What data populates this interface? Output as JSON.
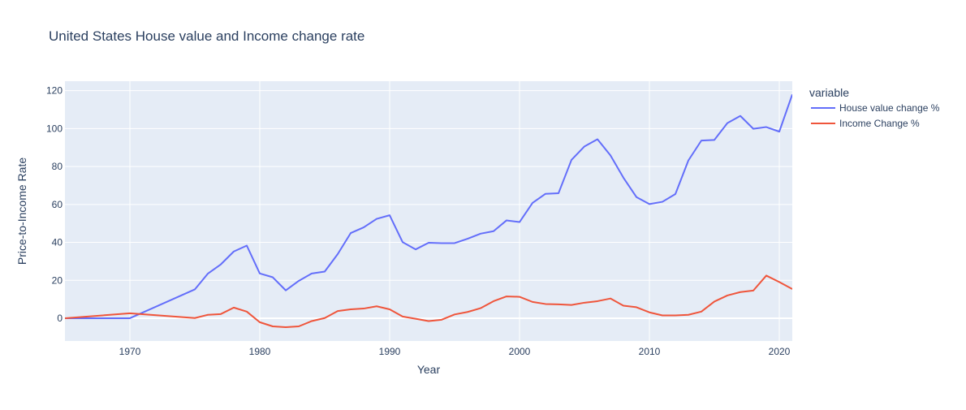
{
  "chart_data": {
    "type": "line",
    "title": "United States House value and Income change rate",
    "xlabel": "Year",
    "ylabel": "Price-to-Income Rate",
    "xlim": [
      1965,
      2021
    ],
    "ylim": [
      -12,
      125
    ],
    "x_ticks": [
      1970,
      1980,
      1990,
      2000,
      2010,
      2020
    ],
    "y_ticks": [
      0,
      20,
      40,
      60,
      80,
      100,
      120
    ],
    "grid": true,
    "legend": {
      "title": "variable",
      "position": "right"
    },
    "series": [
      {
        "name": "House value change %",
        "color": "#636efa",
        "x": [
          1965,
          1970,
          1975,
          1976,
          1977,
          1978,
          1979,
          1980,
          1981,
          1982,
          1983,
          1984,
          1985,
          1986,
          1987,
          1988,
          1989,
          1990,
          1991,
          1992,
          1993,
          1994,
          1995,
          1996,
          1997,
          1998,
          1999,
          2000,
          2001,
          2002,
          2003,
          2004,
          2005,
          2006,
          2007,
          2008,
          2009,
          2010,
          2011,
          2012,
          2013,
          2014,
          2015,
          2016,
          2017,
          2018,
          2019,
          2020,
          2021
        ],
        "y": [
          0,
          0,
          15.2,
          23.5,
          28.4,
          35.2,
          38.3,
          23.6,
          21.6,
          14.7,
          19.7,
          23.6,
          24.6,
          33.8,
          44.9,
          47.9,
          52.4,
          54.3,
          40.1,
          36.3,
          39.8,
          39.6,
          39.6,
          41.9,
          44.6,
          45.9,
          51.6,
          50.7,
          60.8,
          65.6,
          65.9,
          83.5,
          90.6,
          94.4,
          85.9,
          74.1,
          63.9,
          60.2,
          61.4,
          65.5,
          83.2,
          93.7,
          94.0,
          102.9,
          106.7,
          99.9,
          100.8,
          98.4,
          118.0
        ]
      },
      {
        "name": "Income Change %",
        "color": "#ef553b",
        "x": [
          1965,
          1970,
          1975,
          1976,
          1977,
          1978,
          1979,
          1980,
          1981,
          1982,
          1983,
          1984,
          1985,
          1986,
          1987,
          1988,
          1989,
          1990,
          1991,
          1992,
          1993,
          1994,
          1995,
          1996,
          1997,
          1998,
          1999,
          2000,
          2001,
          2002,
          2003,
          2004,
          2005,
          2006,
          2007,
          2008,
          2009,
          2010,
          2011,
          2012,
          2013,
          2014,
          2015,
          2016,
          2017,
          2018,
          2019,
          2020,
          2021
        ],
        "y": [
          0,
          2.6,
          0.1,
          1.8,
          2.2,
          5.6,
          3.5,
          -2.1,
          -4.3,
          -4.7,
          -4.3,
          -1.5,
          0.1,
          3.8,
          4.7,
          5.1,
          6.3,
          4.7,
          0.9,
          -0.3,
          -1.5,
          -0.8,
          2.0,
          3.3,
          5.3,
          9.0,
          11.5,
          11.3,
          8.6,
          7.5,
          7.3,
          7.0,
          8.2,
          9.0,
          10.4,
          6.6,
          5.8,
          3.1,
          1.5,
          1.5,
          1.8,
          3.5,
          8.8,
          12.0,
          13.8,
          14.6,
          22.5,
          19.1,
          15.4
        ]
      }
    ]
  }
}
